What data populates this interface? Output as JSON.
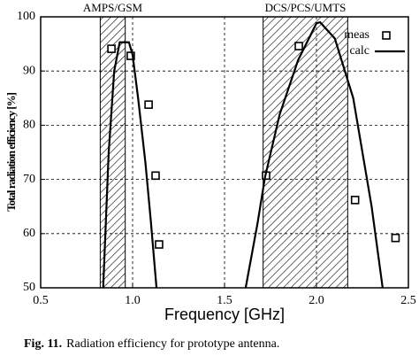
{
  "chart_data": {
    "type": "line",
    "x_label": "Frequency [GHz]",
    "y_label": "Total radiation efficiency [%]",
    "caption": {
      "label": "Fig. 11.",
      "text": "Radiation efficiency for prototype antenna."
    },
    "xlim": [
      0.5,
      2.5
    ],
    "xticks": [
      0.5,
      {
        "value": 1,
        "label": "1.0"
      },
      1.5,
      {
        "value": 2,
        "label": "2.0"
      },
      2.5
    ],
    "ylim": [
      50,
      100
    ],
    "yticks": [
      50,
      60,
      70,
      80,
      90,
      100
    ],
    "grid": true,
    "legend": "top-right",
    "bands": [
      {
        "label": "AMPS/GSM",
        "range": [
          0.824,
          0.96
        ]
      },
      {
        "label": "DCS/PCS/UMTS",
        "range": [
          1.71,
          2.17
        ]
      }
    ],
    "series": [
      {
        "name": "meas",
        "color": "#000000",
        "marker": "square",
        "x": [
          0.885,
          0.99,
          1.087,
          1.125,
          1.144,
          1.726,
          1.904,
          2.21,
          2.43
        ],
        "values": [
          94.1,
          92.8,
          83.8,
          70.7,
          58.0,
          70.7,
          94.6,
          66.2,
          59.2
        ]
      },
      {
        "name": "calc",
        "color": "#000000",
        "marker": "line",
        "x": [
          0.84,
          0.87,
          0.9,
          0.93,
          0.98,
          1.0,
          1.03,
          1.07,
          1.1,
          1.13,
          1.35,
          1.615,
          1.68,
          1.72,
          1.8,
          1.9,
          2.0,
          2.02,
          2.1,
          2.2,
          2.3,
          2.36
        ],
        "values": [
          50,
          75,
          90,
          95.3,
          95.3,
          93,
          85,
          73,
          62,
          50,
          null,
          50,
          62,
          70.4,
          82,
          92,
          98.8,
          99,
          96,
          85,
          65,
          50
        ]
      }
    ]
  }
}
